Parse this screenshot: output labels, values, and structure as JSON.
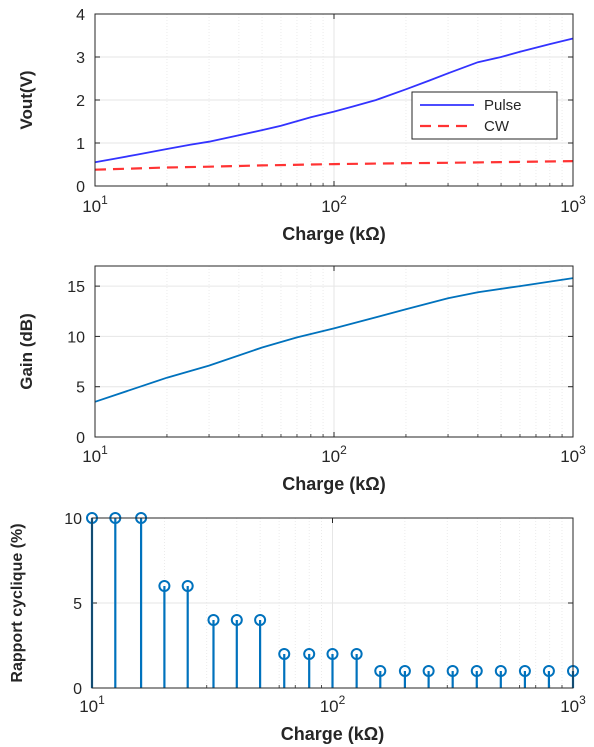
{
  "figure": {
    "colors": {
      "axis": "#262626",
      "grid": "#e6e6e6",
      "background": "#ffffff"
    }
  },
  "chart_data": [
    {
      "type": "line",
      "xscale": "log",
      "xlim": [
        10,
        1000
      ],
      "ylim": [
        0,
        4
      ],
      "yticks": [
        "0",
        "1",
        "2",
        "3",
        "4"
      ],
      "xticks": [
        {
          "base": "10",
          "exp": "1"
        },
        {
          "base": "10",
          "exp": "2"
        },
        {
          "base": "10",
          "exp": "3"
        }
      ],
      "xlabel": "Charge (kΩ)",
      "ylabel": "Vout(V)",
      "grid": true,
      "legend_position": "right-middle",
      "series": [
        {
          "name": "Pulse",
          "color": "#3333ff",
          "style": "solid",
          "x": [
            10,
            12,
            15,
            20,
            25,
            30,
            40,
            50,
            60,
            80,
            100,
            120,
            150,
            200,
            250,
            300,
            400,
            500,
            600,
            800,
            1000
          ],
          "y": [
            0.55,
            0.63,
            0.73,
            0.86,
            0.96,
            1.03,
            1.18,
            1.3,
            1.4,
            1.6,
            1.73,
            1.85,
            2.0,
            2.25,
            2.45,
            2.62,
            2.88,
            3.0,
            3.12,
            3.3,
            3.43
          ]
        },
        {
          "name": "CW",
          "color": "#ff3333",
          "style": "dashed",
          "x": [
            10,
            20,
            30,
            50,
            100,
            200,
            300,
            500,
            1000
          ],
          "y": [
            0.38,
            0.43,
            0.45,
            0.48,
            0.51,
            0.53,
            0.54,
            0.555,
            0.58
          ]
        }
      ]
    },
    {
      "type": "line",
      "xscale": "log",
      "xlim": [
        10,
        1000
      ],
      "ylim": [
        0,
        17
      ],
      "yticks": [
        "0",
        "5",
        "10",
        "15"
      ],
      "ytick_values": [
        0,
        5,
        10,
        15
      ],
      "xticks": [
        {
          "base": "10",
          "exp": "1"
        },
        {
          "base": "10",
          "exp": "2"
        },
        {
          "base": "10",
          "exp": "3"
        }
      ],
      "xlabel": "Charge (kΩ)",
      "ylabel": "Gain (dB)",
      "grid": true,
      "series": [
        {
          "color": "#0072bd",
          "style": "solid",
          "x": [
            10,
            15,
            20,
            30,
            50,
            70,
            100,
            150,
            200,
            300,
            400,
            600,
            1000
          ],
          "y": [
            3.5,
            4.9,
            5.9,
            7.1,
            8.9,
            9.9,
            10.8,
            11.9,
            12.7,
            13.8,
            14.4,
            15.0,
            15.8
          ]
        }
      ]
    },
    {
      "type": "stem",
      "xscale": "log",
      "xlim": [
        10,
        1000
      ],
      "ylim": [
        0,
        10
      ],
      "yticks": [
        "0",
        "5",
        "10"
      ],
      "ytick_values": [
        0,
        5,
        10
      ],
      "xticks": [
        {
          "base": "10",
          "exp": "1"
        },
        {
          "base": "10",
          "exp": "2"
        },
        {
          "base": "10",
          "exp": "3"
        }
      ],
      "xlabel": "Charge (kΩ)",
      "ylabel": "Rapport cyclique (%)",
      "grid": true,
      "series": [
        {
          "color": "#0072bd",
          "x": [
            10,
            12.5,
            16,
            20,
            25,
            32,
            40,
            50,
            63,
            80,
            100,
            126,
            158,
            200,
            251,
            316,
            398,
            501,
            631,
            794,
            1000
          ],
          "y": [
            10,
            10,
            10,
            6,
            6,
            4,
            4,
            4,
            2,
            2,
            2,
            2,
            1,
            1,
            1,
            1,
            1,
            1,
            1,
            1,
            1
          ]
        }
      ]
    }
  ]
}
